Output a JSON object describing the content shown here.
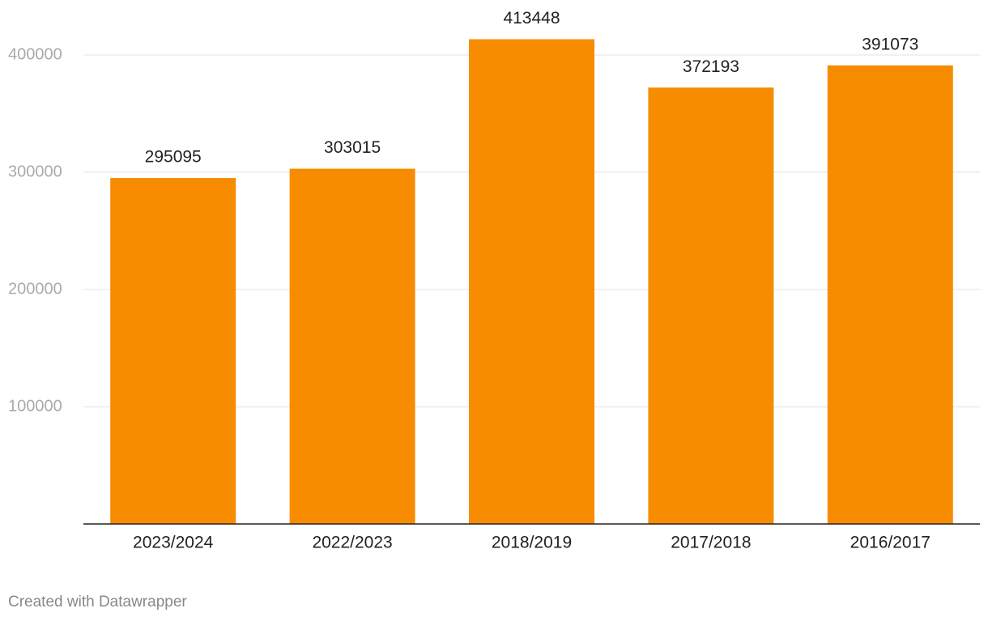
{
  "chart_data": {
    "type": "bar",
    "categories": [
      "2023/2024",
      "2022/2023",
      "2018/2019",
      "2017/2018",
      "2016/2017"
    ],
    "values": [
      295095,
      303015,
      413448,
      372193,
      391073
    ],
    "color": "#f78c00",
    "ylim": [
      0,
      400000
    ],
    "yticks": [
      100000,
      200000,
      300000,
      400000
    ],
    "grid": true,
    "credit": "Created with Datawrapper"
  }
}
